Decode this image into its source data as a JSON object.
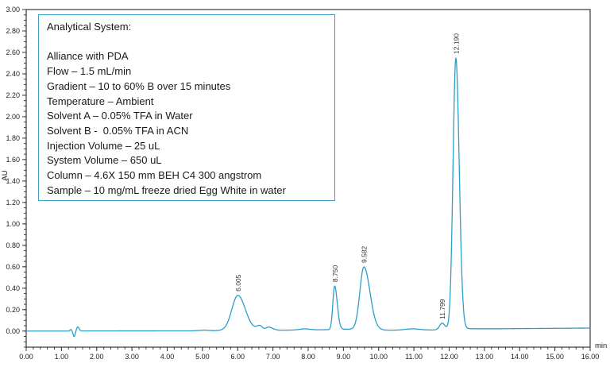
{
  "info_box": {
    "title": "Analytical System:",
    "border_color": "#3FA3C4",
    "lines": [
      "Alliance with PDA",
      "Flow – 1.5 mL/min",
      "Gradient – 10 to 60% B over 15 minutes",
      "Temperature – Ambient",
      "Solvent A – 0.05% TFA in Water",
      "Solvent B -  0.05% TFA in ACN",
      "Injection Volume – 25 uL",
      "System Volume – 650 uL",
      "Column – 4.6X 150 mm BEH C4 300 angstrom",
      "Sample – 10 mg/mL freeze dried Egg White in water"
    ]
  },
  "chart_data": {
    "type": "line",
    "title": "",
    "xlabel": "min",
    "ylabel": "AU",
    "xlim": [
      0,
      16
    ],
    "ylim_display": [
      -0.15,
      3.0
    ],
    "x_minor_step": 0.2,
    "y_minor_step": 0.05,
    "x_tick_labels": [
      "0.00",
      "1.00",
      "2.00",
      "3.00",
      "4.00",
      "5.00",
      "6.00",
      "7.00",
      "8.00",
      "9.00",
      "10.00",
      "11.00",
      "12.00",
      "13.00",
      "14.00",
      "15.00",
      "16.00"
    ],
    "y_tick_labels": [
      "0.00",
      "0.20",
      "0.40",
      "0.60",
      "0.80",
      "1.00",
      "1.20",
      "1.40",
      "1.60",
      "1.80",
      "2.00",
      "2.20",
      "2.40",
      "2.60",
      "2.80",
      "3.00"
    ],
    "trace_color": "#2E9EC6",
    "axis_color": "#3a3a3a",
    "grid": "off",
    "legend": "none",
    "peaks": [
      {
        "label": "6.005",
        "rt": 6.005,
        "height": 0.325,
        "sigma_left": 0.17,
        "sigma_right": 0.21
      },
      {
        "label": "8.750",
        "rt": 8.75,
        "height": 0.405,
        "sigma_left": 0.05,
        "sigma_right": 0.075
      },
      {
        "label": "9.582",
        "rt": 9.582,
        "height": 0.585,
        "sigma_left": 0.115,
        "sigma_right": 0.17
      },
      {
        "label": "11.799",
        "rt": 11.799,
        "height": 0.06,
        "sigma_left": 0.07,
        "sigma_right": 0.08
      },
      {
        "label": "12.190",
        "rt": 12.19,
        "height": 2.53,
        "sigma_left": 0.08,
        "sigma_right": 0.095
      }
    ],
    "minor_features": [
      {
        "rt": 1.27,
        "height": 0.015,
        "sigma_left": 0.025,
        "sigma_right": 0.02
      },
      {
        "rt": 1.36,
        "height": -0.052,
        "sigma_left": 0.028,
        "sigma_right": 0.028
      },
      {
        "rt": 1.46,
        "height": 0.038,
        "sigma_left": 0.03,
        "sigma_right": 0.04
      },
      {
        "rt": 6.63,
        "height": 0.04,
        "sigma_left": 0.09,
        "sigma_right": 0.07
      },
      {
        "rt": 6.87,
        "height": 0.028,
        "sigma_left": 0.07,
        "sigma_right": 0.12
      },
      {
        "rt": 7.9,
        "height": 0.01,
        "sigma_left": 0.15,
        "sigma_right": 0.15
      },
      {
        "rt": 10.95,
        "height": 0.012,
        "sigma_left": 0.2,
        "sigma_right": 0.2
      }
    ],
    "baseline": [
      [
        0,
        0
      ],
      [
        1.2,
        0
      ],
      [
        1.6,
        0.001
      ],
      [
        4.7,
        0.002
      ],
      [
        5.05,
        0.009
      ],
      [
        5.3,
        0.004
      ],
      [
        6.4,
        0.01
      ],
      [
        7.2,
        0.008
      ],
      [
        8.4,
        0.012
      ],
      [
        9.05,
        0.018
      ],
      [
        10.35,
        0.008
      ],
      [
        11.5,
        0.01
      ],
      [
        12.55,
        0.022
      ],
      [
        13.5,
        0.022
      ],
      [
        16,
        0.028
      ]
    ]
  }
}
